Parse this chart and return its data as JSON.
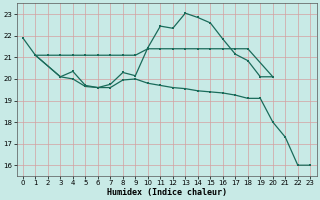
{
  "line1_x": [
    0,
    1,
    3,
    4,
    5,
    6,
    7,
    8,
    9,
    10,
    11,
    12,
    13,
    14,
    15,
    16,
    17,
    18,
    19,
    20
  ],
  "line1_y": [
    21.9,
    21.1,
    20.1,
    20.35,
    19.7,
    19.6,
    19.75,
    20.3,
    20.15,
    21.45,
    22.45,
    22.35,
    23.05,
    22.85,
    22.6,
    21.85,
    21.15,
    20.85,
    20.1,
    20.1
  ],
  "line2_x": [
    1,
    2,
    3,
    4,
    5,
    6,
    7,
    8,
    9,
    10,
    11,
    12,
    13,
    14,
    15,
    16,
    17,
    18,
    20
  ],
  "line2_y": [
    21.1,
    21.1,
    21.1,
    21.1,
    21.1,
    21.1,
    21.1,
    21.1,
    21.1,
    21.4,
    21.4,
    21.4,
    21.4,
    21.4,
    21.4,
    21.4,
    21.4,
    21.4,
    20.1
  ],
  "line3_x": [
    1,
    3,
    4,
    5,
    6,
    7,
    8,
    9,
    10,
    11,
    12,
    13,
    14,
    15,
    16,
    17,
    18,
    19,
    20,
    21,
    22,
    23
  ],
  "line3_y": [
    21.1,
    20.1,
    20.0,
    19.65,
    19.6,
    19.6,
    19.95,
    20.0,
    19.8,
    19.7,
    19.6,
    19.55,
    19.45,
    19.4,
    19.35,
    19.25,
    19.1,
    19.1,
    18.0,
    17.3,
    16.0,
    16.0
  ],
  "bg_color": "#c8eae6",
  "grid_color": "#d4a0a0",
  "line_color": "#1a6b5a",
  "xlabel": "Humidex (Indice chaleur)",
  "xlim": [
    -0.5,
    23.5
  ],
  "ylim": [
    15.5,
    23.5
  ],
  "yticks": [
    16,
    17,
    18,
    19,
    20,
    21,
    22,
    23
  ],
  "xticks": [
    0,
    1,
    2,
    3,
    4,
    5,
    6,
    7,
    8,
    9,
    10,
    11,
    12,
    13,
    14,
    15,
    16,
    17,
    18,
    19,
    20,
    21,
    22,
    23
  ]
}
